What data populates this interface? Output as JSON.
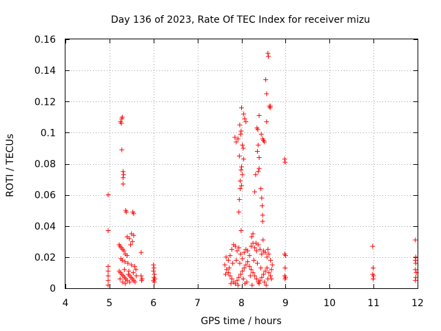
{
  "chart_data": {
    "type": "scatter",
    "title": "Day 136 of 2023, Rate Of TEC Index for receiver mizu",
    "xlabel": "GPS time / hours",
    "ylabel": "ROTI / TECUs",
    "xlim": [
      4,
      12
    ],
    "ylim": [
      0,
      0.16
    ],
    "xticks": [
      "4",
      "5",
      "6",
      "7",
      "8",
      "9",
      "10",
      "11",
      "12"
    ],
    "yticks": [
      "0",
      "0.02",
      "0.04",
      "0.06",
      "0.08",
      "0.1",
      "0.12",
      "0.14",
      "0.16"
    ],
    "grid": true,
    "marker": "+",
    "color": "#ff0000",
    "series": [
      {
        "name": "ROTI",
        "points": [
          [
            4.97,
            0.06
          ],
          [
            4.97,
            0.037
          ],
          [
            4.97,
            0.014
          ],
          [
            4.97,
            0.011
          ],
          [
            4.97,
            0.008
          ],
          [
            4.97,
            0.005
          ],
          [
            4.97,
            0.002
          ],
          [
            5.25,
            0.107
          ],
          [
            5.27,
            0.106
          ],
          [
            5.28,
            0.109
          ],
          [
            5.29,
            0.11
          ],
          [
            5.28,
            0.089
          ],
          [
            5.31,
            0.075
          ],
          [
            5.32,
            0.073
          ],
          [
            5.31,
            0.071
          ],
          [
            5.31,
            0.067
          ],
          [
            5.37,
            0.05
          ],
          [
            5.38,
            0.049
          ],
          [
            5.53,
            0.049
          ],
          [
            5.55,
            0.048
          ],
          [
            5.72,
            0.023
          ],
          [
            5.4,
            0.033
          ],
          [
            5.45,
            0.032
          ],
          [
            5.5,
            0.035
          ],
          [
            5.55,
            0.034
          ],
          [
            5.52,
            0.03
          ],
          [
            5.48,
            0.028
          ],
          [
            5.22,
            0.028
          ],
          [
            5.24,
            0.027
          ],
          [
            5.27,
            0.026
          ],
          [
            5.3,
            0.025
          ],
          [
            5.33,
            0.024
          ],
          [
            5.36,
            0.022
          ],
          [
            5.4,
            0.021
          ],
          [
            5.26,
            0.019
          ],
          [
            5.29,
            0.018
          ],
          [
            5.35,
            0.017
          ],
          [
            5.42,
            0.016
          ],
          [
            5.5,
            0.015
          ],
          [
            5.57,
            0.014
          ],
          [
            5.6,
            0.012
          ],
          [
            5.22,
            0.011
          ],
          [
            5.25,
            0.01
          ],
          [
            5.28,
            0.009
          ],
          [
            5.31,
            0.008
          ],
          [
            5.34,
            0.007
          ],
          [
            5.37,
            0.006
          ],
          [
            5.4,
            0.005
          ],
          [
            5.43,
            0.009
          ],
          [
            5.46,
            0.008
          ],
          [
            5.49,
            0.007
          ],
          [
            5.52,
            0.006
          ],
          [
            5.55,
            0.005
          ],
          [
            5.58,
            0.004
          ],
          [
            5.3,
            0.004
          ],
          [
            5.24,
            0.006
          ],
          [
            5.34,
            0.012
          ],
          [
            5.44,
            0.011
          ],
          [
            5.54,
            0.01
          ],
          [
            5.61,
            0.008
          ],
          [
            5.36,
            0.003
          ],
          [
            5.46,
            0.004
          ],
          [
            5.72,
            0.008
          ],
          [
            5.74,
            0.006
          ],
          [
            5.73,
            0.005
          ],
          [
            6.0,
            0.015
          ],
          [
            6.01,
            0.013
          ],
          [
            6.0,
            0.011
          ],
          [
            6.02,
            0.009
          ],
          [
            6.01,
            0.007
          ],
          [
            6.03,
            0.006
          ],
          [
            6.0,
            0.005
          ],
          [
            6.02,
            0.004
          ],
          [
            8.0,
            0.116
          ],
          [
            8.05,
            0.112
          ],
          [
            8.07,
            0.109
          ],
          [
            8.1,
            0.107
          ],
          [
            7.96,
            0.105
          ],
          [
            7.99,
            0.101
          ],
          [
            7.98,
            0.099
          ],
          [
            7.85,
            0.097
          ],
          [
            7.88,
            0.094
          ],
          [
            7.92,
            0.096
          ],
          [
            8.02,
            0.092
          ],
          [
            8.04,
            0.09
          ],
          [
            7.95,
            0.085
          ],
          [
            8.05,
            0.083
          ],
          [
            8.0,
            0.078
          ],
          [
            7.99,
            0.076
          ],
          [
            8.02,
            0.073
          ],
          [
            7.97,
            0.069
          ],
          [
            8.0,
            0.066
          ],
          [
            7.97,
            0.064
          ],
          [
            7.95,
            0.057
          ],
          [
            7.94,
            0.049
          ],
          [
            8.32,
            0.073
          ],
          [
            8.38,
            0.075
          ],
          [
            8.4,
            0.077
          ],
          [
            8.3,
            0.062
          ],
          [
            8.44,
            0.064
          ],
          [
            8.46,
            0.058
          ],
          [
            8.47,
            0.053
          ],
          [
            8.48,
            0.047
          ],
          [
            8.48,
            0.043
          ],
          [
            8.35,
            0.103
          ],
          [
            8.37,
            0.102
          ],
          [
            8.4,
            0.111
          ],
          [
            8.45,
            0.099
          ],
          [
            8.48,
            0.096
          ],
          [
            8.5,
            0.095
          ],
          [
            8.52,
            0.094
          ],
          [
            8.57,
            0.107
          ],
          [
            8.38,
            0.092
          ],
          [
            8.36,
            0.088
          ],
          [
            8.4,
            0.084
          ],
          [
            8.55,
            0.134
          ],
          [
            8.57,
            0.125
          ],
          [
            8.6,
            0.151
          ],
          [
            8.61,
            0.149
          ],
          [
            8.63,
            0.117
          ],
          [
            8.65,
            0.116
          ],
          [
            8.66,
            0.117
          ],
          [
            7.99,
            0.037
          ],
          [
            8.23,
            0.033
          ],
          [
            8.26,
            0.035
          ],
          [
            8.33,
            0.029
          ],
          [
            8.49,
            0.031
          ],
          [
            7.65,
            0.02
          ],
          [
            7.7,
            0.018
          ],
          [
            7.74,
            0.021
          ],
          [
            7.78,
            0.025
          ],
          [
            7.82,
            0.028
          ],
          [
            7.86,
            0.027
          ],
          [
            7.9,
            0.024
          ],
          [
            7.94,
            0.026
          ],
          [
            7.98,
            0.022
          ],
          [
            8.02,
            0.019
          ],
          [
            8.06,
            0.023
          ],
          [
            8.1,
            0.025
          ],
          [
            8.14,
            0.024
          ],
          [
            8.18,
            0.021
          ],
          [
            8.22,
            0.027
          ],
          [
            8.26,
            0.029
          ],
          [
            8.3,
            0.026
          ],
          [
            8.34,
            0.024
          ],
          [
            8.38,
            0.028
          ],
          [
            8.42,
            0.025
          ],
          [
            8.46,
            0.022
          ],
          [
            8.5,
            0.024
          ],
          [
            8.54,
            0.023
          ],
          [
            8.58,
            0.02
          ],
          [
            8.62,
            0.022
          ],
          [
            8.66,
            0.018
          ],
          [
            8.7,
            0.015
          ],
          [
            8.6,
            0.025
          ],
          [
            7.62,
            0.015
          ],
          [
            7.66,
            0.012
          ],
          [
            7.7,
            0.01
          ],
          [
            7.74,
            0.008
          ],
          [
            7.78,
            0.006
          ],
          [
            7.82,
            0.004
          ],
          [
            7.86,
            0.003
          ],
          [
            7.9,
            0.005
          ],
          [
            7.94,
            0.007
          ],
          [
            7.98,
            0.009
          ],
          [
            8.02,
            0.011
          ],
          [
            8.06,
            0.013
          ],
          [
            8.1,
            0.015
          ],
          [
            8.14,
            0.017
          ],
          [
            8.18,
            0.014
          ],
          [
            8.22,
            0.012
          ],
          [
            8.26,
            0.01
          ],
          [
            8.3,
            0.008
          ],
          [
            8.34,
            0.006
          ],
          [
            8.38,
            0.004
          ],
          [
            8.42,
            0.005
          ],
          [
            8.46,
            0.007
          ],
          [
            8.5,
            0.009
          ],
          [
            8.54,
            0.011
          ],
          [
            8.58,
            0.013
          ],
          [
            8.62,
            0.01
          ],
          [
            8.66,
            0.008
          ],
          [
            8.68,
            0.006
          ],
          [
            7.64,
            0.009
          ],
          [
            7.72,
            0.013
          ],
          [
            7.8,
            0.016
          ],
          [
            7.88,
            0.018
          ],
          [
            7.96,
            0.016
          ],
          [
            8.04,
            0.006
          ],
          [
            8.12,
            0.004
          ],
          [
            8.2,
            0.008
          ],
          [
            8.28,
            0.018
          ],
          [
            8.36,
            0.016
          ],
          [
            8.44,
            0.013
          ],
          [
            8.52,
            0.004
          ],
          [
            8.6,
            0.006
          ],
          [
            8.68,
            0.012
          ],
          [
            7.76,
            0.003
          ],
          [
            7.92,
            0.002
          ],
          [
            8.08,
            0.003
          ],
          [
            8.24,
            0.002
          ],
          [
            8.4,
            0.003
          ],
          [
            8.56,
            0.002
          ],
          [
            8.98,
            0.083
          ],
          [
            8.99,
            0.081
          ],
          [
            8.98,
            0.022
          ],
          [
            9.0,
            0.021
          ],
          [
            8.99,
            0.013
          ],
          [
            8.98,
            0.008
          ],
          [
            9.0,
            0.007
          ],
          [
            8.99,
            0.006
          ],
          [
            10.98,
            0.027
          ],
          [
            10.99,
            0.013
          ],
          [
            10.98,
            0.009
          ],
          [
            11.0,
            0.008
          ],
          [
            10.99,
            0.006
          ],
          [
            11.95,
            0.031
          ],
          [
            11.96,
            0.02
          ],
          [
            11.95,
            0.018
          ],
          [
            11.96,
            0.016
          ],
          [
            11.95,
            0.012
          ],
          [
            11.97,
            0.01
          ],
          [
            11.96,
            0.007
          ],
          [
            11.95,
            0.005
          ]
        ]
      }
    ]
  }
}
